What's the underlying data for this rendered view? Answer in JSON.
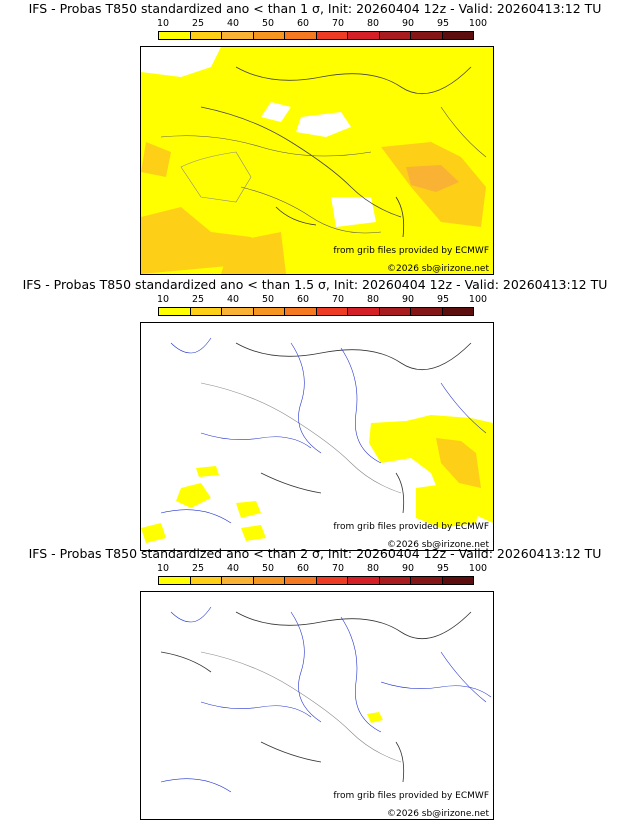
{
  "legend": {
    "ticks": [
      "10",
      "25",
      "40",
      "50",
      "60",
      "70",
      "80",
      "90",
      "95",
      "100"
    ],
    "colors": [
      "#ffff00",
      "#fdd017",
      "#f9b233",
      "#f79521",
      "#f47920",
      "#ee3b24",
      "#d51f26",
      "#a81c20",
      "#851617",
      "#5c0e0e"
    ]
  },
  "credits": {
    "source": "from grib files provided by ECMWF",
    "copyright": "©2026 sb@irizone.net"
  },
  "panels": [
    {
      "title": "IFS - Probas T850  standardized ano < than 1 σ, Init: 20260404 12z - Valid: 20260413:12 TU",
      "coverage": "widespread"
    },
    {
      "title": "IFS - Probas T850  standardized ano < than 1.5 σ, Init: 20260404 12z - Valid: 20260413:12 TU",
      "coverage": "patchy"
    },
    {
      "title": "IFS - Probas T850  standardized ano < than 2 σ, Init: 20260404 12z - Valid: 20260413:12 TU",
      "coverage": "minimal"
    }
  ]
}
